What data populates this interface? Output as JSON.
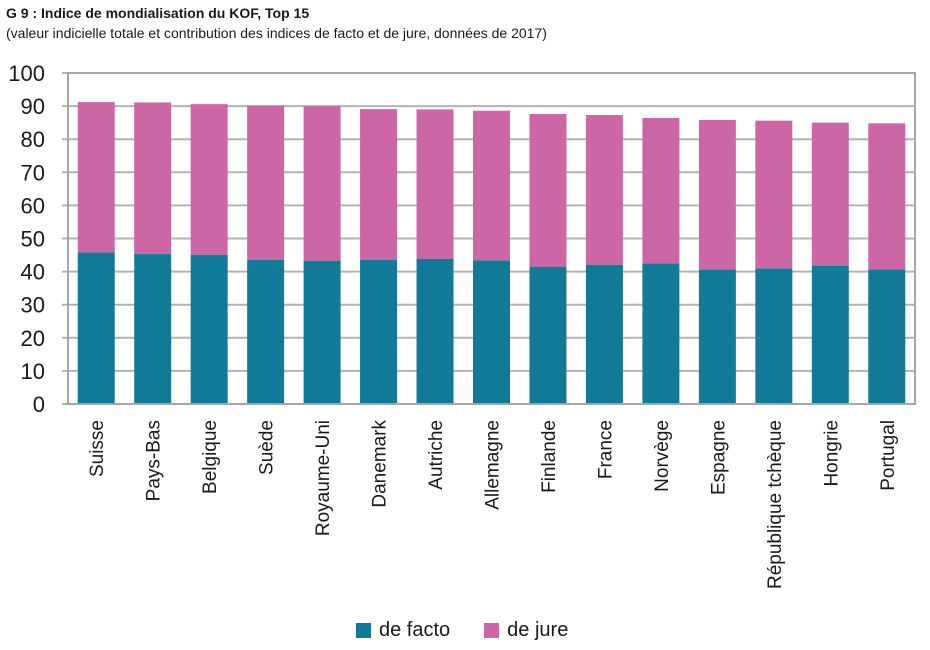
{
  "chart_data": {
    "type": "bar",
    "stacked": true,
    "title": "G 9 : Indice de mondialisation du KOF, Top 15",
    "subtitle": "(valeur indicielle totale et contribution des indices de facto et de jure, données de 2017)",
    "xlabel": "",
    "ylabel": "",
    "ylim": [
      0,
      100
    ],
    "yticks": [
      "0",
      "10",
      "20",
      "30",
      "40",
      "50",
      "60",
      "70",
      "80",
      "90",
      "100"
    ],
    "grid": true,
    "legend_position": "bottom-center",
    "categories": [
      "Suisse",
      "Pays-Bas",
      "Belgique",
      "Suède",
      "Royaume-Uni",
      "Danemark",
      "Autriche",
      "Allemagne",
      "Finlande",
      "France",
      "Norvège",
      "Espagne",
      "République tchèque",
      "Hongrie",
      "Portugal"
    ],
    "series": [
      {
        "name": "de facto",
        "color": "#117a96",
        "values": [
          45.8,
          45.3,
          45.1,
          43.6,
          43.3,
          43.6,
          43.9,
          43.4,
          41.5,
          42.1,
          42.5,
          40.6,
          41.0,
          41.8,
          40.7
        ]
      },
      {
        "name": "de jure",
        "color": "#cc66a5",
        "values": [
          45.4,
          45.8,
          45.5,
          46.5,
          46.7,
          45.5,
          45.1,
          45.2,
          46.1,
          45.2,
          43.9,
          45.2,
          44.6,
          43.2,
          44.1
        ]
      }
    ],
    "totals": [
      91.2,
      91.1,
      90.6,
      90.1,
      90.0,
      89.1,
      89.0,
      88.6,
      87.6,
      87.3,
      86.4,
      85.8,
      85.6,
      85.0,
      84.8
    ]
  }
}
